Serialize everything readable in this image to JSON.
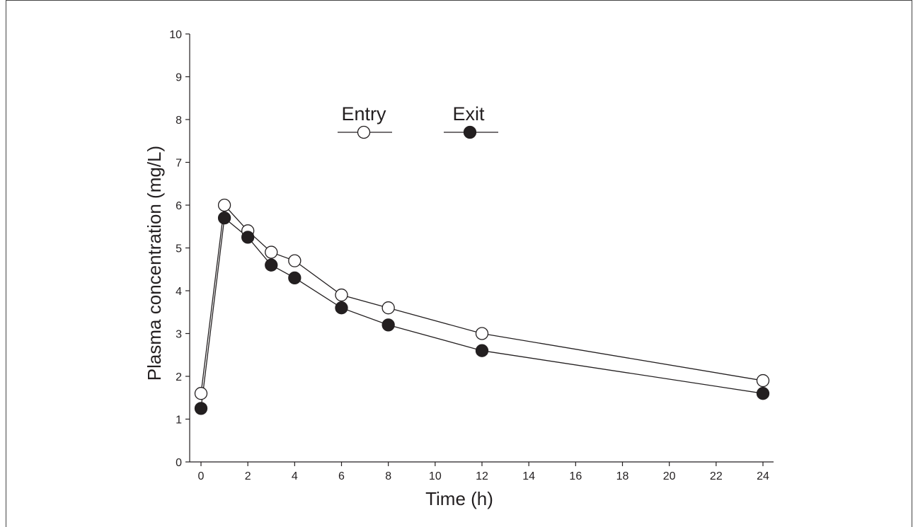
{
  "chart_data": {
    "type": "line",
    "xlabel": "Time (h)",
    "ylabel": "Plasma concentration (mg/L)",
    "xlim": [
      0,
      24
    ],
    "ylim": [
      0,
      10
    ],
    "x_ticks": [
      "0",
      "2",
      "4",
      "6",
      "8",
      "10",
      "12",
      "14",
      "16",
      "18",
      "20",
      "22",
      "24"
    ],
    "y_ticks": [
      "0",
      "1",
      "2",
      "3",
      "4",
      "5",
      "6",
      "7",
      "8",
      "9",
      "10"
    ],
    "grid": false,
    "legend_placement": "top-center",
    "series": [
      {
        "name": "Entry",
        "marker": "open-circle",
        "color": "#ffffff",
        "x": [
          0,
          1,
          2,
          3,
          4,
          6,
          8,
          12,
          24
        ],
        "y": [
          1.6,
          6.0,
          5.4,
          4.9,
          4.7,
          3.9,
          3.6,
          3.0,
          1.9
        ]
      },
      {
        "name": "Exit",
        "marker": "filled-circle",
        "color": "#231f20",
        "x": [
          0,
          1,
          2,
          3,
          4,
          6,
          8,
          12,
          24
        ],
        "y": [
          1.25,
          5.7,
          5.25,
          4.6,
          4.3,
          3.6,
          3.2,
          2.6,
          1.6
        ]
      }
    ]
  }
}
